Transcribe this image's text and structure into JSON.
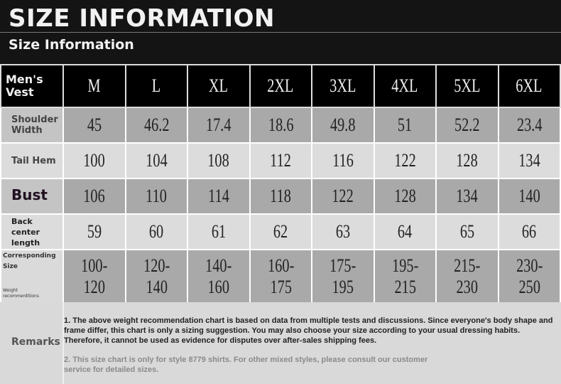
{
  "header": {
    "title": "SIZE INFORMATION",
    "subtitle": "Size Information"
  },
  "table": {
    "corner": "Men's Vest",
    "sizes": [
      "M",
      "L",
      "XL",
      "2XL",
      "3XL",
      "4XL",
      "5XL",
      "6XL"
    ],
    "rows": [
      {
        "label": "Shoulder Width",
        "values": [
          "45",
          "46.2",
          "17.4",
          "18.6",
          "49.8",
          "51",
          "52.2",
          "23.4"
        ]
      },
      {
        "label": "Tail Hem",
        "values": [
          "100",
          "104",
          "108",
          "112",
          "116",
          "122",
          "128",
          "134"
        ]
      },
      {
        "label": "Bust",
        "values": [
          "106",
          "110",
          "114",
          "118",
          "122",
          "128",
          "134",
          "140"
        ]
      },
      {
        "label": "Back center length",
        "values": [
          "59",
          "60",
          "61",
          "62",
          "63",
          "64",
          "65",
          "66"
        ]
      },
      {
        "label": "Corresponding Size",
        "sublabel": "Weight recommerditions",
        "values": [
          "100-120",
          "120-140",
          "140-160",
          "160-175",
          "175-195",
          "195-215",
          "215-230",
          "230-250"
        ]
      }
    ]
  },
  "remarks": {
    "label": "Remarks",
    "note1": "1. The above weight recommendation chart is based on data from multiple tests and discussions. Since everyone's body shape and frame differ, this chart is only a sizing suggestion. You may also choose your size according to your usual dressing habits. Therefore, it cannot be used as evidence for disputes over after-sales shipping fees.",
    "note2": "2. This size chart is only for style 8779 shirts. For other mixed styles, please consult our customer service for detailed sizes."
  }
}
